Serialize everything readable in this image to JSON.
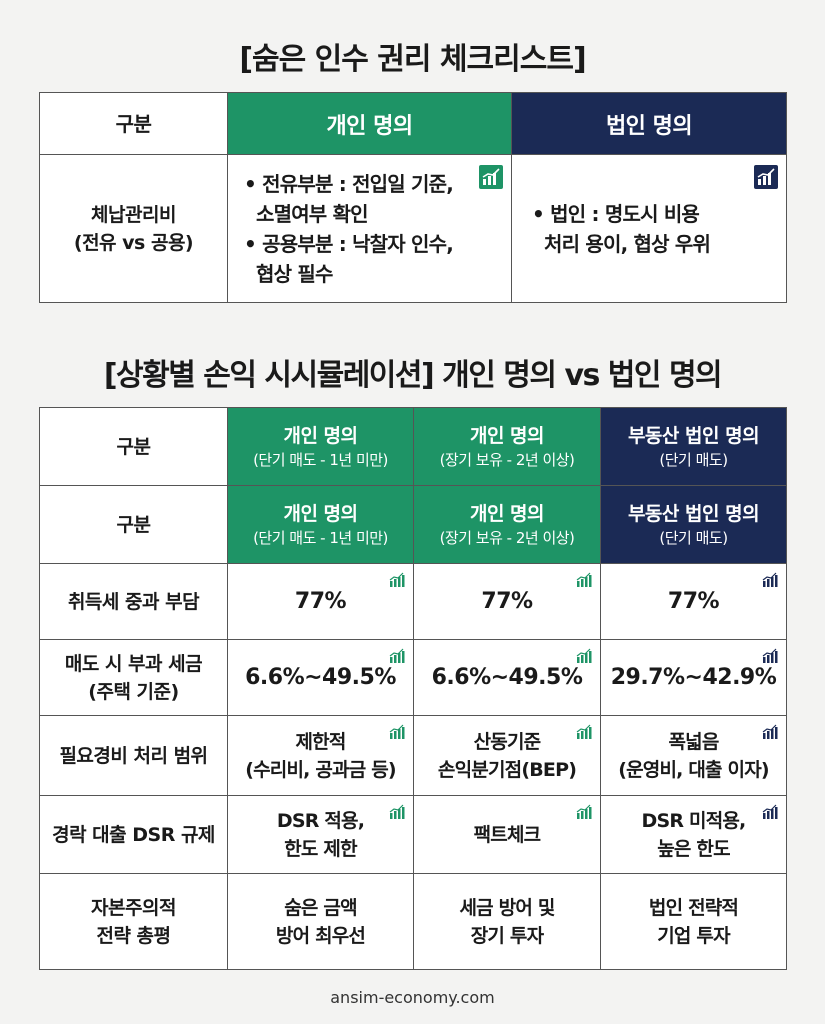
{
  "title1": "[숨은 인수 권리 체크리스트]",
  "table1": {
    "header": [
      "구분",
      "개인 명의",
      "법인 명의"
    ],
    "row": {
      "label_line1": "체납관리비",
      "label_line2": "(전유 vs 공용)",
      "personal": [
        {
          "line1": "• 전유부분 : 전입일 기준,",
          "line2": "소멸여부 확인"
        },
        {
          "line1": "• 공용부분 : 낙찰자 인수,",
          "line2": "협상 필수"
        }
      ],
      "corp": {
        "line1": "• 법인 : 명도시 비용",
        "line2": "처리 용이, 협상 우위"
      }
    }
  },
  "title2": "[상황별 손익 시시뮬레이션] 개인 명의 vs 법인 명의",
  "table2": {
    "headers": [
      {
        "label": "구분",
        "cols": [
          {
            "line1": "개인 명의",
            "line2": "(단기 매도 - 1년 미만)"
          },
          {
            "line1": "개인 명의",
            "line2": "(장기 보유 - 2년 이상)"
          },
          {
            "line1": "부동산 법인 명의",
            "line2": "(단기 매도)"
          }
        ]
      },
      {
        "label": "구분",
        "cols": [
          {
            "line1": "개인 명의",
            "line2": "(단기 매도 - 1년 미만)"
          },
          {
            "line1": "개인 명의",
            "line2": "(장기 보유 - 2년 이상)"
          },
          {
            "line1": "부동산 법인 명의",
            "line2": "(단기 매도)"
          }
        ]
      }
    ],
    "rows": [
      {
        "label_line1": "취득세 중과 부담",
        "label_line2": "",
        "cells": [
          {
            "line1": "77%",
            "line2": ""
          },
          {
            "line1": "77%",
            "line2": ""
          },
          {
            "line1": "77%",
            "line2": ""
          }
        ]
      },
      {
        "label_line1": "매도 시 부과 세금",
        "label_line2": "(주택 기준)",
        "cells": [
          {
            "line1": "6.6%~49.5%",
            "line2": ""
          },
          {
            "line1": "6.6%~49.5%",
            "line2": ""
          },
          {
            "line1": "29.7%~42.9%",
            "line2": ""
          }
        ]
      },
      {
        "label_line1": "필요경비 처리 범위",
        "label_line2": "",
        "cells": [
          {
            "line1": "제한적",
            "line2": "(수리비, 공과금 등)"
          },
          {
            "line1": "산동기준",
            "line2": "손익분기점(BEP)"
          },
          {
            "line1": "폭넓음",
            "line2": "(운영비, 대출 이자)"
          }
        ]
      },
      {
        "label_line1": "경락 대출 DSR 규제",
        "label_line2": "",
        "cells": [
          {
            "line1": "DSR 적용,",
            "line2": "한도 제한"
          },
          {
            "line1": "팩트체크",
            "line2": ""
          },
          {
            "line1": "DSR 미적용,",
            "line2": "높은 한도"
          }
        ]
      },
      {
        "label_line1": "자본주의적",
        "label_line2": "전략 총평",
        "cells": [
          {
            "line1": "숨은 금액",
            "line2": "방어 최우선"
          },
          {
            "line1": "세금 방어 및",
            "line2": "장기 투자"
          },
          {
            "line1": "법인 전략적",
            "line2": "기업 투자"
          }
        ]
      }
    ]
  },
  "footer": "ansim-economy.com",
  "colors": {
    "green": "#1e9466",
    "navy": "#1b2a55",
    "background": "#f3f3f2"
  },
  "icons": {
    "personal": "chart-green-icon",
    "corp": "chart-navy-icon"
  }
}
